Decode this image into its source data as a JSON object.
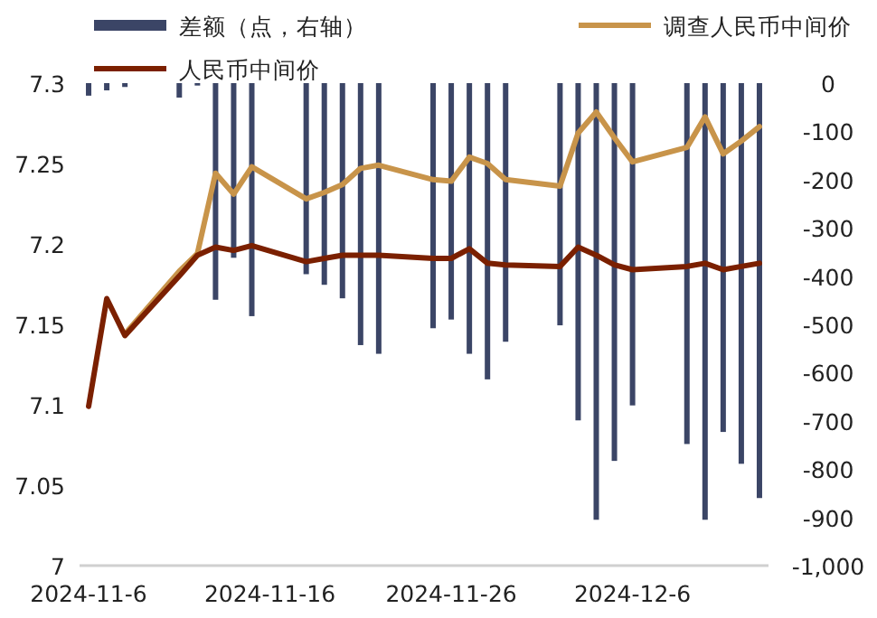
{
  "chart_data": {
    "type": "line",
    "x": [
      "2024-11-06",
      "2024-11-07",
      "2024-11-08",
      "2024-11-11",
      "2024-11-12",
      "2024-11-13",
      "2024-11-14",
      "2024-11-15",
      "2024-11-18",
      "2024-11-19",
      "2024-11-20",
      "2024-11-21",
      "2024-11-22",
      "2024-11-25",
      "2024-11-26",
      "2024-11-27",
      "2024-11-28",
      "2024-11-29",
      "2024-12-02",
      "2024-12-03",
      "2024-12-04",
      "2024-12-05",
      "2024-12-06",
      "2024-12-09",
      "2024-12-10",
      "2024-12-11",
      "2024-12-12",
      "2024-12-13"
    ],
    "series": [
      {
        "name": "差额（点，右轴）",
        "type": "bar",
        "axis": "y2",
        "color": "#3b4566",
        "values": [
          -26,
          -15,
          -8,
          -30,
          -5,
          -449,
          -362,
          -483,
          -396,
          -418,
          -446,
          -543,
          -561,
          -508,
          -490,
          -561,
          -614,
          -536,
          -502,
          -699,
          -905,
          -783,
          -668,
          -748,
          -905,
          -723,
          -789,
          -860
        ]
      },
      {
        "name": "调查人民币中间价",
        "color": "#c8944a",
        "values": [
          null,
          null,
          7.144,
          7.183,
          7.194,
          7.244,
          7.231,
          7.248,
          7.228,
          7.232,
          7.237,
          7.247,
          7.249,
          7.24,
          7.239,
          7.254,
          7.25,
          7.24,
          7.236,
          7.269,
          7.282,
          7.266,
          7.251,
          7.26,
          7.279,
          7.256,
          7.264,
          7.273
        ]
      },
      {
        "name": "人民币中间价",
        "color": "#7b2000",
        "values": [
          7.099,
          7.166,
          7.143,
          7.18,
          7.193,
          7.198,
          7.196,
          7.199,
          7.189,
          7.191,
          7.193,
          7.193,
          7.193,
          7.191,
          7.191,
          7.197,
          7.188,
          7.187,
          7.186,
          7.198,
          7.193,
          7.187,
          7.184,
          7.186,
          7.188,
          7.184,
          7.186,
          7.188
        ]
      }
    ],
    "xlim": [
      "2024-11-05T12:00",
      "2024-12-13T12:00"
    ],
    "xticks": [
      {
        "value": "2024-11-06",
        "label": "2024-11-6"
      },
      {
        "value": "2024-11-16",
        "label": "2024-11-16"
      },
      {
        "value": "2024-11-26",
        "label": "2024-11-26"
      },
      {
        "value": "2024-12-06",
        "label": "2024-12-6"
      }
    ],
    "ylim": [
      7,
      7.3
    ],
    "yticks": [
      7,
      7.05,
      7.1,
      7.15,
      7.2,
      7.25,
      7.3
    ],
    "y2lim": [
      -1000,
      0
    ],
    "y2ticks": [
      0,
      -100,
      -200,
      -300,
      -400,
      -500,
      -600,
      -700,
      -800,
      -900,
      {
        "value": -1000,
        "label": "-1,000"
      }
    ],
    "legend": "top",
    "grid": false
  }
}
